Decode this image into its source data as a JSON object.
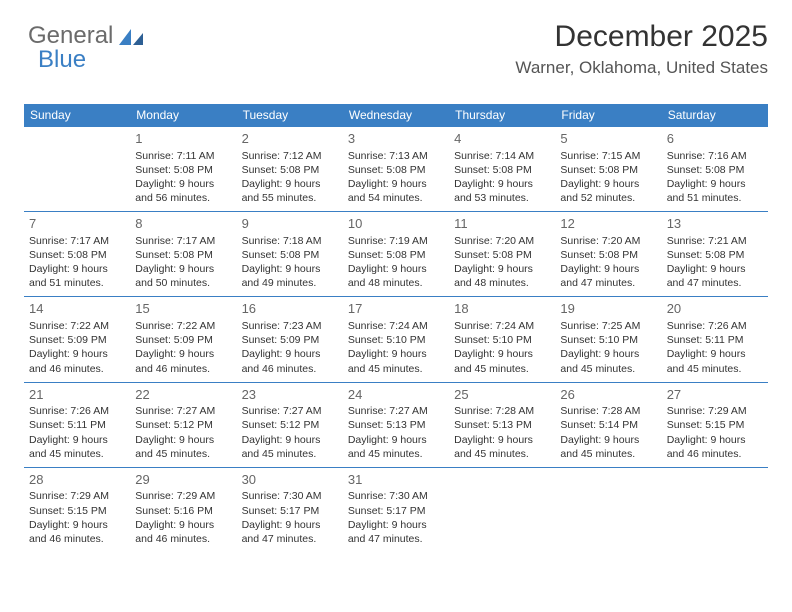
{
  "logo": {
    "text1": "General",
    "text2": "Blue"
  },
  "header": {
    "month_title": "December 2025",
    "location": "Warner, Oklahoma, United States"
  },
  "colors": {
    "header_bg": "#3a7fc4",
    "header_text": "#ffffff",
    "border": "#3a7fc4",
    "body_text": "#333333",
    "day_number": "#666666",
    "logo_gray": "#6b6b6b",
    "logo_blue": "#3a7fc4"
  },
  "calendar": {
    "type": "table",
    "columns": [
      "Sunday",
      "Monday",
      "Tuesday",
      "Wednesday",
      "Thursday",
      "Friday",
      "Saturday"
    ],
    "cell_font_size": 10.5,
    "header_font_size": 12,
    "day_number_font_size": 13,
    "weeks": [
      [
        null,
        {
          "day": "1",
          "sunrise": "Sunrise: 7:11 AM",
          "sunset": "Sunset: 5:08 PM",
          "daylight1": "Daylight: 9 hours",
          "daylight2": "and 56 minutes."
        },
        {
          "day": "2",
          "sunrise": "Sunrise: 7:12 AM",
          "sunset": "Sunset: 5:08 PM",
          "daylight1": "Daylight: 9 hours",
          "daylight2": "and 55 minutes."
        },
        {
          "day": "3",
          "sunrise": "Sunrise: 7:13 AM",
          "sunset": "Sunset: 5:08 PM",
          "daylight1": "Daylight: 9 hours",
          "daylight2": "and 54 minutes."
        },
        {
          "day": "4",
          "sunrise": "Sunrise: 7:14 AM",
          "sunset": "Sunset: 5:08 PM",
          "daylight1": "Daylight: 9 hours",
          "daylight2": "and 53 minutes."
        },
        {
          "day": "5",
          "sunrise": "Sunrise: 7:15 AM",
          "sunset": "Sunset: 5:08 PM",
          "daylight1": "Daylight: 9 hours",
          "daylight2": "and 52 minutes."
        },
        {
          "day": "6",
          "sunrise": "Sunrise: 7:16 AM",
          "sunset": "Sunset: 5:08 PM",
          "daylight1": "Daylight: 9 hours",
          "daylight2": "and 51 minutes."
        }
      ],
      [
        {
          "day": "7",
          "sunrise": "Sunrise: 7:17 AM",
          "sunset": "Sunset: 5:08 PM",
          "daylight1": "Daylight: 9 hours",
          "daylight2": "and 51 minutes."
        },
        {
          "day": "8",
          "sunrise": "Sunrise: 7:17 AM",
          "sunset": "Sunset: 5:08 PM",
          "daylight1": "Daylight: 9 hours",
          "daylight2": "and 50 minutes."
        },
        {
          "day": "9",
          "sunrise": "Sunrise: 7:18 AM",
          "sunset": "Sunset: 5:08 PM",
          "daylight1": "Daylight: 9 hours",
          "daylight2": "and 49 minutes."
        },
        {
          "day": "10",
          "sunrise": "Sunrise: 7:19 AM",
          "sunset": "Sunset: 5:08 PM",
          "daylight1": "Daylight: 9 hours",
          "daylight2": "and 48 minutes."
        },
        {
          "day": "11",
          "sunrise": "Sunrise: 7:20 AM",
          "sunset": "Sunset: 5:08 PM",
          "daylight1": "Daylight: 9 hours",
          "daylight2": "and 48 minutes."
        },
        {
          "day": "12",
          "sunrise": "Sunrise: 7:20 AM",
          "sunset": "Sunset: 5:08 PM",
          "daylight1": "Daylight: 9 hours",
          "daylight2": "and 47 minutes."
        },
        {
          "day": "13",
          "sunrise": "Sunrise: 7:21 AM",
          "sunset": "Sunset: 5:08 PM",
          "daylight1": "Daylight: 9 hours",
          "daylight2": "and 47 minutes."
        }
      ],
      [
        {
          "day": "14",
          "sunrise": "Sunrise: 7:22 AM",
          "sunset": "Sunset: 5:09 PM",
          "daylight1": "Daylight: 9 hours",
          "daylight2": "and 46 minutes."
        },
        {
          "day": "15",
          "sunrise": "Sunrise: 7:22 AM",
          "sunset": "Sunset: 5:09 PM",
          "daylight1": "Daylight: 9 hours",
          "daylight2": "and 46 minutes."
        },
        {
          "day": "16",
          "sunrise": "Sunrise: 7:23 AM",
          "sunset": "Sunset: 5:09 PM",
          "daylight1": "Daylight: 9 hours",
          "daylight2": "and 46 minutes."
        },
        {
          "day": "17",
          "sunrise": "Sunrise: 7:24 AM",
          "sunset": "Sunset: 5:10 PM",
          "daylight1": "Daylight: 9 hours",
          "daylight2": "and 45 minutes."
        },
        {
          "day": "18",
          "sunrise": "Sunrise: 7:24 AM",
          "sunset": "Sunset: 5:10 PM",
          "daylight1": "Daylight: 9 hours",
          "daylight2": "and 45 minutes."
        },
        {
          "day": "19",
          "sunrise": "Sunrise: 7:25 AM",
          "sunset": "Sunset: 5:10 PM",
          "daylight1": "Daylight: 9 hours",
          "daylight2": "and 45 minutes."
        },
        {
          "day": "20",
          "sunrise": "Sunrise: 7:26 AM",
          "sunset": "Sunset: 5:11 PM",
          "daylight1": "Daylight: 9 hours",
          "daylight2": "and 45 minutes."
        }
      ],
      [
        {
          "day": "21",
          "sunrise": "Sunrise: 7:26 AM",
          "sunset": "Sunset: 5:11 PM",
          "daylight1": "Daylight: 9 hours",
          "daylight2": "and 45 minutes."
        },
        {
          "day": "22",
          "sunrise": "Sunrise: 7:27 AM",
          "sunset": "Sunset: 5:12 PM",
          "daylight1": "Daylight: 9 hours",
          "daylight2": "and 45 minutes."
        },
        {
          "day": "23",
          "sunrise": "Sunrise: 7:27 AM",
          "sunset": "Sunset: 5:12 PM",
          "daylight1": "Daylight: 9 hours",
          "daylight2": "and 45 minutes."
        },
        {
          "day": "24",
          "sunrise": "Sunrise: 7:27 AM",
          "sunset": "Sunset: 5:13 PM",
          "daylight1": "Daylight: 9 hours",
          "daylight2": "and 45 minutes."
        },
        {
          "day": "25",
          "sunrise": "Sunrise: 7:28 AM",
          "sunset": "Sunset: 5:13 PM",
          "daylight1": "Daylight: 9 hours",
          "daylight2": "and 45 minutes."
        },
        {
          "day": "26",
          "sunrise": "Sunrise: 7:28 AM",
          "sunset": "Sunset: 5:14 PM",
          "daylight1": "Daylight: 9 hours",
          "daylight2": "and 45 minutes."
        },
        {
          "day": "27",
          "sunrise": "Sunrise: 7:29 AM",
          "sunset": "Sunset: 5:15 PM",
          "daylight1": "Daylight: 9 hours",
          "daylight2": "and 46 minutes."
        }
      ],
      [
        {
          "day": "28",
          "sunrise": "Sunrise: 7:29 AM",
          "sunset": "Sunset: 5:15 PM",
          "daylight1": "Daylight: 9 hours",
          "daylight2": "and 46 minutes."
        },
        {
          "day": "29",
          "sunrise": "Sunrise: 7:29 AM",
          "sunset": "Sunset: 5:16 PM",
          "daylight1": "Daylight: 9 hours",
          "daylight2": "and 46 minutes."
        },
        {
          "day": "30",
          "sunrise": "Sunrise: 7:30 AM",
          "sunset": "Sunset: 5:17 PM",
          "daylight1": "Daylight: 9 hours",
          "daylight2": "and 47 minutes."
        },
        {
          "day": "31",
          "sunrise": "Sunrise: 7:30 AM",
          "sunset": "Sunset: 5:17 PM",
          "daylight1": "Daylight: 9 hours",
          "daylight2": "and 47 minutes."
        },
        null,
        null,
        null
      ]
    ]
  }
}
